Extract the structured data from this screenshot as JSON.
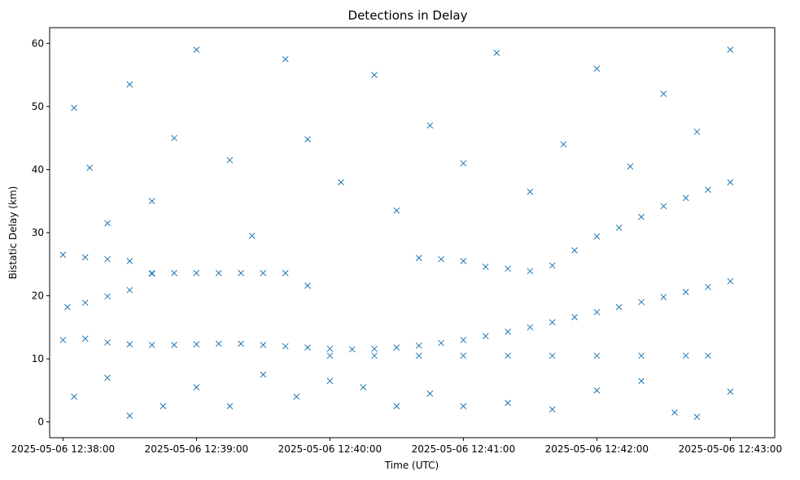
{
  "chart_data": {
    "type": "scatter",
    "title": "Detections in Delay",
    "xlabel": "Time (UTC)",
    "ylabel": "Bistatic Delay (km)",
    "marker": "x",
    "color": "#1f77b4",
    "grid": false,
    "legend": null,
    "xlim": [
      "2025-05-06 12:37:54",
      "2025-05-06 12:43:20"
    ],
    "ylim": [
      -2.5,
      62.5
    ],
    "x_ticks": [
      "2025-05-06 12:38:00",
      "2025-05-06 12:39:00",
      "2025-05-06 12:40:00",
      "2025-05-06 12:41:00",
      "2025-05-06 12:42:00",
      "2025-05-06 12:43:00"
    ],
    "y_ticks": [
      0,
      10,
      20,
      30,
      40,
      50,
      60
    ],
    "series": [
      {
        "values": [
          [
            "2025-05-06 12:38:00",
            13.0
          ],
          [
            "2025-05-06 12:38:10",
            13.2
          ],
          [
            "2025-05-06 12:38:20",
            12.6
          ],
          [
            "2025-05-06 12:38:30",
            12.3
          ],
          [
            "2025-05-06 12:38:40",
            12.2
          ],
          [
            "2025-05-06 12:38:50",
            12.2
          ],
          [
            "2025-05-06 12:39:00",
            12.3
          ],
          [
            "2025-05-06 12:39:10",
            12.4
          ],
          [
            "2025-05-06 12:39:20",
            12.4
          ],
          [
            "2025-05-06 12:39:30",
            12.2
          ],
          [
            "2025-05-06 12:39:40",
            12.0
          ],
          [
            "2025-05-06 12:39:50",
            11.8
          ],
          [
            "2025-05-06 12:40:00",
            11.6
          ],
          [
            "2025-05-06 12:40:10",
            11.5
          ],
          [
            "2025-05-06 12:40:20",
            11.6
          ],
          [
            "2025-05-06 12:40:30",
            11.8
          ],
          [
            "2025-05-06 12:40:40",
            12.1
          ],
          [
            "2025-05-06 12:40:50",
            12.5
          ],
          [
            "2025-05-06 12:41:00",
            13.0
          ],
          [
            "2025-05-06 12:41:10",
            13.6
          ],
          [
            "2025-05-06 12:41:20",
            14.3
          ],
          [
            "2025-05-06 12:41:30",
            15.0
          ],
          [
            "2025-05-06 12:41:40",
            15.8
          ],
          [
            "2025-05-06 12:41:50",
            16.6
          ],
          [
            "2025-05-06 12:42:00",
            17.4
          ],
          [
            "2025-05-06 12:42:10",
            18.2
          ],
          [
            "2025-05-06 12:42:20",
            19.0
          ],
          [
            "2025-05-06 12:42:30",
            19.8
          ],
          [
            "2025-05-06 12:42:40",
            20.6
          ],
          [
            "2025-05-06 12:42:50",
            21.4
          ],
          [
            "2025-05-06 12:43:00",
            22.3
          ],
          [
            "2025-05-06 12:38:02",
            18.2
          ],
          [
            "2025-05-06 12:38:10",
            18.9
          ],
          [
            "2025-05-06 12:38:20",
            19.9
          ],
          [
            "2025-05-06 12:38:30",
            20.9
          ],
          [
            "2025-05-06 12:38:40",
            23.6
          ],
          [
            "2025-05-06 12:38:50",
            23.6
          ],
          [
            "2025-05-06 12:39:00",
            23.6
          ],
          [
            "2025-05-06 12:39:10",
            23.6
          ],
          [
            "2025-05-06 12:39:20",
            23.6
          ],
          [
            "2025-05-06 12:39:30",
            23.6
          ],
          [
            "2025-05-06 12:39:40",
            23.6
          ],
          [
            "2025-05-06 12:39:50",
            21.6
          ],
          [
            "2025-05-06 12:40:40",
            26.0
          ],
          [
            "2025-05-06 12:40:50",
            25.8
          ],
          [
            "2025-05-06 12:41:00",
            25.5
          ],
          [
            "2025-05-06 12:41:10",
            24.6
          ],
          [
            "2025-05-06 12:41:20",
            24.3
          ],
          [
            "2025-05-06 12:41:30",
            23.9
          ],
          [
            "2025-05-06 12:41:40",
            24.8
          ],
          [
            "2025-05-06 12:41:50",
            27.2
          ],
          [
            "2025-05-06 12:42:00",
            29.4
          ],
          [
            "2025-05-06 12:42:10",
            30.8
          ],
          [
            "2025-05-06 12:42:20",
            32.5
          ],
          [
            "2025-05-06 12:42:30",
            34.2
          ],
          [
            "2025-05-06 12:42:40",
            35.5
          ],
          [
            "2025-05-06 12:42:50",
            36.8
          ],
          [
            "2025-05-06 12:43:00",
            38.0
          ],
          [
            "2025-05-06 12:38:00",
            26.5
          ],
          [
            "2025-05-06 12:38:10",
            26.1
          ],
          [
            "2025-05-06 12:38:20",
            25.8
          ],
          [
            "2025-05-06 12:38:30",
            25.5
          ],
          [
            "2025-05-06 12:38:40",
            23.5
          ],
          [
            "2025-05-06 12:38:05",
            49.8
          ],
          [
            "2025-05-06 12:38:12",
            40.3
          ],
          [
            "2025-05-06 12:38:20",
            31.5
          ],
          [
            "2025-05-06 12:38:30",
            53.5
          ],
          [
            "2025-05-06 12:38:40",
            35.0
          ],
          [
            "2025-05-06 12:38:50",
            45.0
          ],
          [
            "2025-05-06 12:39:00",
            59.0
          ],
          [
            "2025-05-06 12:39:15",
            41.5
          ],
          [
            "2025-05-06 12:39:25",
            29.5
          ],
          [
            "2025-05-06 12:39:40",
            57.5
          ],
          [
            "2025-05-06 12:39:50",
            44.8
          ],
          [
            "2025-05-06 12:40:05",
            38.0
          ],
          [
            "2025-05-06 12:40:20",
            55.0
          ],
          [
            "2025-05-06 12:40:30",
            33.5
          ],
          [
            "2025-05-06 12:40:45",
            47.0
          ],
          [
            "2025-05-06 12:41:00",
            41.0
          ],
          [
            "2025-05-06 12:41:15",
            58.5
          ],
          [
            "2025-05-06 12:41:30",
            36.5
          ],
          [
            "2025-05-06 12:41:45",
            44.0
          ],
          [
            "2025-05-06 12:42:00",
            56.0
          ],
          [
            "2025-05-06 12:42:15",
            40.5
          ],
          [
            "2025-05-06 12:42:30",
            52.0
          ],
          [
            "2025-05-06 12:42:45",
            46.0
          ],
          [
            "2025-05-06 12:43:00",
            59.0
          ],
          [
            "2025-05-06 12:38:05",
            4.0
          ],
          [
            "2025-05-06 12:38:20",
            7.0
          ],
          [
            "2025-05-06 12:38:30",
            1.0
          ],
          [
            "2025-05-06 12:38:45",
            2.5
          ],
          [
            "2025-05-06 12:39:00",
            5.5
          ],
          [
            "2025-05-06 12:39:15",
            2.5
          ],
          [
            "2025-05-06 12:39:30",
            7.5
          ],
          [
            "2025-05-06 12:39:45",
            4.0
          ],
          [
            "2025-05-06 12:40:00",
            6.5
          ],
          [
            "2025-05-06 12:40:15",
            5.5
          ],
          [
            "2025-05-06 12:40:30",
            2.5
          ],
          [
            "2025-05-06 12:40:45",
            4.5
          ],
          [
            "2025-05-06 12:41:00",
            2.5
          ],
          [
            "2025-05-06 12:41:20",
            3.0
          ],
          [
            "2025-05-06 12:41:40",
            2.0
          ],
          [
            "2025-05-06 12:42:00",
            5.0
          ],
          [
            "2025-05-06 12:42:20",
            6.5
          ],
          [
            "2025-05-06 12:42:35",
            1.5
          ],
          [
            "2025-05-06 12:42:45",
            0.8
          ],
          [
            "2025-05-06 12:43:00",
            4.8
          ],
          [
            "2025-05-06 12:40:00",
            10.5
          ],
          [
            "2025-05-06 12:40:20",
            10.5
          ],
          [
            "2025-05-06 12:40:40",
            10.5
          ],
          [
            "2025-05-06 12:41:00",
            10.5
          ],
          [
            "2025-05-06 12:41:20",
            10.5
          ],
          [
            "2025-05-06 12:41:40",
            10.5
          ],
          [
            "2025-05-06 12:42:00",
            10.5
          ],
          [
            "2025-05-06 12:42:20",
            10.5
          ],
          [
            "2025-05-06 12:42:40",
            10.5
          ],
          [
            "2025-05-06 12:42:50",
            10.5
          ]
        ]
      }
    ]
  }
}
